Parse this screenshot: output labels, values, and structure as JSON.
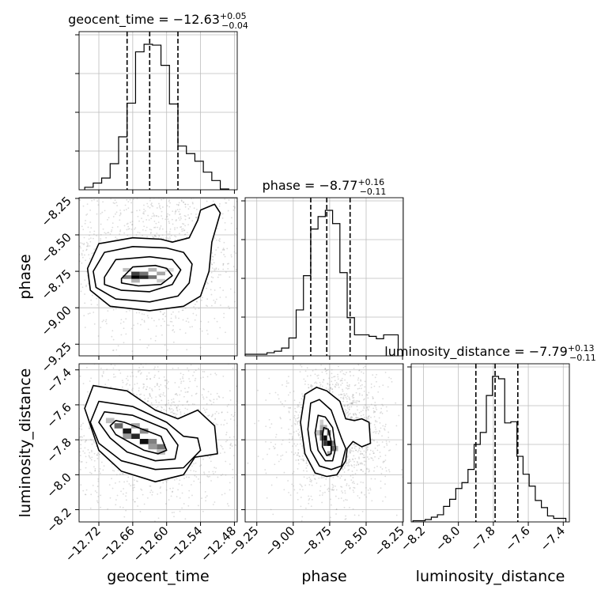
{
  "chart_data": {
    "type": "corner",
    "parameters": [
      "geocent_time",
      "phase",
      "luminosity_distance"
    ],
    "axis_labels": {
      "geocent_time": "geocent_time",
      "phase": "phase",
      "luminosity_distance": "luminosity_distance"
    },
    "ranges": {
      "geocent_time": [
        -12.755,
        -12.475
      ],
      "phase": [
        -9.33,
        -8.245
      ],
      "luminosity_distance": [
        -8.27,
        -7.365
      ]
    },
    "ticks": {
      "geocent_time": {
        "values": [
          -12.72,
          -12.66,
          -12.6,
          -12.54,
          -12.48
        ],
        "labels": [
          "−12.72",
          "−12.66",
          "−12.60",
          "−12.54",
          "−12.48"
        ]
      },
      "phase": {
        "values": [
          -9.25,
          -9.0,
          -8.75,
          -8.5,
          -8.25
        ],
        "labels": [
          "−9.25",
          "−9.00",
          "−8.75",
          "−8.50",
          "−8.25"
        ]
      },
      "luminosity_distance": {
        "values": [
          -8.2,
          -8.0,
          -7.8,
          -7.6,
          -7.4
        ],
        "labels": [
          "−8.2",
          "−8.0",
          "−7.8",
          "−7.6",
          "−7.4"
        ]
      }
    },
    "grid": true,
    "marginals": [
      {
        "parameter": "geocent_time",
        "title_main": "geocent_time = −12.63",
        "title_plus": "+0.05",
        "title_minus": "−0.04",
        "quantiles": [
          -12.67,
          -12.63,
          -12.58
        ],
        "bin_edges": [
          -12.745,
          -12.73,
          -12.715,
          -12.7,
          -12.685,
          -12.67,
          -12.655,
          -12.64,
          -12.625,
          -12.61,
          -12.595,
          -12.58,
          -12.565,
          -12.55,
          -12.535,
          -12.52,
          -12.505,
          -12.49
        ],
        "counts": [
          3,
          8,
          14,
          31,
          63,
          103,
          164,
          173,
          172,
          148,
          102,
          52,
          43,
          34,
          21,
          11,
          1
        ]
      },
      {
        "parameter": "phase",
        "title_main": "phase = −8.77",
        "title_plus": "+0.16",
        "title_minus": "−0.11",
        "quantiles": [
          -8.88,
          -8.77,
          -8.61
        ],
        "bin_edges": [
          -9.33,
          -9.28,
          -9.23,
          -9.18,
          -9.13,
          -9.08,
          -9.03,
          -8.98,
          -8.93,
          -8.88,
          -8.83,
          -8.78,
          -8.73,
          -8.68,
          -8.63,
          -8.58,
          -8.53,
          -8.48,
          -8.43,
          -8.38,
          -8.33,
          -8.28
        ],
        "counts": [
          2,
          2,
          2,
          4,
          6,
          10,
          23,
          59,
          103,
          163,
          179,
          187,
          170,
          107,
          49,
          27,
          27,
          25,
          22,
          27,
          27
        ]
      },
      {
        "parameter": "luminosity_distance",
        "title_main": "luminosity_distance = −7.79",
        "title_plus": "+0.13",
        "title_minus": "−0.11",
        "quantiles": [
          -7.9,
          -7.79,
          -7.66
        ],
        "bin_edges": [
          -8.26,
          -8.225,
          -8.19,
          -8.155,
          -8.12,
          -8.085,
          -8.05,
          -8.015,
          -7.98,
          -7.945,
          -7.91,
          -7.875,
          -7.84,
          -7.805,
          -7.77,
          -7.735,
          -7.7,
          -7.665,
          -7.63,
          -7.595,
          -7.56,
          -7.525,
          -7.49,
          -7.455,
          -7.42,
          -7.385
        ],
        "counts": [
          1,
          1,
          2,
          4,
          6,
          13,
          19,
          28,
          33,
          44,
          65,
          75,
          106,
          122,
          120,
          83,
          84,
          55,
          40,
          30,
          18,
          12,
          5,
          3,
          3
        ]
      }
    ],
    "joint": [
      {
        "x": "geocent_time",
        "y": "phase",
        "peak": [
          -12.65,
          -8.79
        ],
        "density_cells": [
          {
            "x": -12.655,
            "y": -8.79,
            "v": 1.0
          },
          {
            "x": -12.64,
            "y": -8.79,
            "v": 0.85
          },
          {
            "x": -12.655,
            "y": -8.765,
            "v": 0.75
          },
          {
            "x": -12.625,
            "y": -8.79,
            "v": 0.55
          },
          {
            "x": -12.67,
            "y": -8.79,
            "v": 0.5
          },
          {
            "x": -12.64,
            "y": -8.765,
            "v": 0.55
          },
          {
            "x": -12.61,
            "y": -8.765,
            "v": 0.35
          },
          {
            "x": -12.625,
            "y": -8.74,
            "v": 0.3
          },
          {
            "x": -12.67,
            "y": -8.74,
            "v": 0.25
          },
          {
            "x": -12.655,
            "y": -8.815,
            "v": 0.3
          },
          {
            "x": -12.61,
            "y": -8.815,
            "v": 0.2
          },
          {
            "x": -12.595,
            "y": -8.74,
            "v": 0.15
          }
        ],
        "contours": [
          [
            [
              -12.68,
              -8.8
            ],
            [
              -12.66,
              -8.72
            ],
            [
              -12.62,
              -8.71
            ],
            [
              -12.6,
              -8.73
            ],
            [
              -12.59,
              -8.78
            ],
            [
              -12.61,
              -8.84
            ],
            [
              -12.65,
              -8.85
            ],
            [
              -12.68,
              -8.83
            ]
          ],
          [
            [
              -12.71,
              -8.79
            ],
            [
              -12.69,
              -8.67
            ],
            [
              -12.63,
              -8.65
            ],
            [
              -12.59,
              -8.67
            ],
            [
              -12.575,
              -8.74
            ],
            [
              -12.59,
              -8.84
            ],
            [
              -12.63,
              -8.89
            ],
            [
              -12.68,
              -8.88
            ],
            [
              -12.71,
              -8.84
            ]
          ],
          [
            [
              -12.73,
              -8.75
            ],
            [
              -12.71,
              -8.62
            ],
            [
              -12.66,
              -8.58
            ],
            [
              -12.6,
              -8.59
            ],
            [
              -12.57,
              -8.62
            ],
            [
              -12.555,
              -8.7
            ],
            [
              -12.56,
              -8.83
            ],
            [
              -12.58,
              -8.92
            ],
            [
              -12.63,
              -8.96
            ],
            [
              -12.69,
              -8.94
            ],
            [
              -12.725,
              -8.86
            ]
          ],
          [
            [
              -12.74,
              -8.73
            ],
            [
              -12.72,
              -8.56
            ],
            [
              -12.66,
              -8.52
            ],
            [
              -12.61,
              -8.53
            ],
            [
              -12.59,
              -8.55
            ],
            [
              -12.56,
              -8.52
            ],
            [
              -12.545,
              -8.4
            ],
            [
              -12.54,
              -8.33
            ],
            [
              -12.515,
              -8.29
            ],
            [
              -12.505,
              -8.35
            ],
            [
              -12.52,
              -8.55
            ],
            [
              -12.525,
              -8.75
            ],
            [
              -12.54,
              -8.92
            ],
            [
              -12.57,
              -8.99
            ],
            [
              -12.63,
              -9.02
            ],
            [
              -12.7,
              -8.99
            ],
            [
              -12.735,
              -8.88
            ]
          ]
        ]
      },
      {
        "x": "geocent_time",
        "y": "luminosity_distance",
        "peak": [
          -12.65,
          -7.78
        ],
        "density_cells": [
          {
            "x": -12.67,
            "y": -7.75,
            "v": 0.9
          },
          {
            "x": -12.655,
            "y": -7.78,
            "v": 0.85
          },
          {
            "x": -12.64,
            "y": -7.81,
            "v": 0.95
          },
          {
            "x": -12.685,
            "y": -7.72,
            "v": 0.6
          },
          {
            "x": -12.625,
            "y": -7.81,
            "v": 0.5
          },
          {
            "x": -12.61,
            "y": -7.84,
            "v": 0.55
          },
          {
            "x": -12.64,
            "y": -7.75,
            "v": 0.45
          },
          {
            "x": -12.655,
            "y": -7.72,
            "v": 0.35
          },
          {
            "x": -12.625,
            "y": -7.84,
            "v": 0.4
          },
          {
            "x": -12.7,
            "y": -7.69,
            "v": 0.25
          },
          {
            "x": -12.67,
            "y": -7.78,
            "v": 0.4
          },
          {
            "x": -12.61,
            "y": -7.87,
            "v": 0.25
          }
        ],
        "contours": [
          [
            [
              -12.69,
              -7.69
            ],
            [
              -12.675,
              -7.7
            ],
            [
              -12.61,
              -7.78
            ],
            [
              -12.6,
              -7.86
            ],
            [
              -12.615,
              -7.88
            ],
            [
              -12.64,
              -7.86
            ],
            [
              -12.69,
              -7.77
            ],
            [
              -12.7,
              -7.72
            ]
          ],
          [
            [
              -12.71,
              -7.64
            ],
            [
              -12.66,
              -7.66
            ],
            [
              -12.6,
              -7.74
            ],
            [
              -12.58,
              -7.83
            ],
            [
              -12.585,
              -7.91
            ],
            [
              -12.62,
              -7.92
            ],
            [
              -12.67,
              -7.87
            ],
            [
              -12.7,
              -7.79
            ],
            [
              -12.72,
              -7.7
            ]
          ],
          [
            [
              -12.72,
              -7.58
            ],
            [
              -12.66,
              -7.61
            ],
            [
              -12.6,
              -7.7
            ],
            [
              -12.57,
              -7.78
            ],
            [
              -12.545,
              -7.79
            ],
            [
              -12.54,
              -7.86
            ],
            [
              -12.57,
              -7.96
            ],
            [
              -12.62,
              -7.97
            ],
            [
              -12.68,
              -7.92
            ],
            [
              -12.72,
              -7.82
            ],
            [
              -12.735,
              -7.7
            ]
          ],
          [
            [
              -12.73,
              -7.49
            ],
            [
              -12.67,
              -7.52
            ],
            [
              -12.62,
              -7.63
            ],
            [
              -12.58,
              -7.68
            ],
            [
              -12.545,
              -7.63
            ],
            [
              -12.515,
              -7.72
            ],
            [
              -12.51,
              -7.88
            ],
            [
              -12.55,
              -7.9
            ],
            [
              -12.57,
              -8.0
            ],
            [
              -12.62,
              -8.04
            ],
            [
              -12.68,
              -7.98
            ],
            [
              -12.72,
              -7.86
            ],
            [
              -12.745,
              -7.62
            ]
          ]
        ]
      },
      {
        "x": "phase",
        "y": "luminosity_distance",
        "peak": [
          -8.77,
          -7.81
        ],
        "density_cells": [
          {
            "x": -8.78,
            "y": -7.79,
            "v": 0.95
          },
          {
            "x": -8.755,
            "y": -7.82,
            "v": 1.0
          },
          {
            "x": -8.805,
            "y": -7.76,
            "v": 0.7
          },
          {
            "x": -8.73,
            "y": -7.85,
            "v": 0.65
          },
          {
            "x": -8.78,
            "y": -7.82,
            "v": 0.8
          },
          {
            "x": -8.755,
            "y": -7.76,
            "v": 0.6
          },
          {
            "x": -8.805,
            "y": -7.79,
            "v": 0.55
          },
          {
            "x": -8.73,
            "y": -7.82,
            "v": 0.5
          },
          {
            "x": -8.805,
            "y": -7.73,
            "v": 0.35
          },
          {
            "x": -8.78,
            "y": -7.73,
            "v": 0.3
          },
          {
            "x": -8.705,
            "y": -7.85,
            "v": 0.3
          },
          {
            "x": -8.755,
            "y": -7.88,
            "v": 0.35
          },
          {
            "x": -8.83,
            "y": -7.76,
            "v": 0.25
          },
          {
            "x": -8.805,
            "y": -7.7,
            "v": 0.2
          }
        ],
        "contours": [
          [
            [
              -8.8,
              -7.78
            ],
            [
              -8.79,
              -7.73
            ],
            [
              -8.76,
              -7.74
            ],
            [
              -8.74,
              -7.81
            ],
            [
              -8.74,
              -7.88
            ],
            [
              -8.77,
              -7.89
            ],
            [
              -8.8,
              -7.84
            ]
          ],
          [
            [
              -8.85,
              -7.76
            ],
            [
              -8.83,
              -7.66
            ],
            [
              -8.78,
              -7.67
            ],
            [
              -8.73,
              -7.73
            ],
            [
              -8.71,
              -7.85
            ],
            [
              -8.73,
              -7.92
            ],
            [
              -8.78,
              -7.92
            ],
            [
              -8.83,
              -7.86
            ]
          ],
          [
            [
              -8.9,
              -7.74
            ],
            [
              -8.88,
              -7.59
            ],
            [
              -8.82,
              -7.57
            ],
            [
              -8.74,
              -7.63
            ],
            [
              -8.67,
              -7.79
            ],
            [
              -8.64,
              -7.85
            ],
            [
              -8.67,
              -7.95
            ],
            [
              -8.74,
              -7.97
            ],
            [
              -8.82,
              -7.95
            ],
            [
              -8.88,
              -7.86
            ]
          ],
          [
            [
              -8.95,
              -7.7
            ],
            [
              -8.92,
              -7.54
            ],
            [
              -8.84,
              -7.5
            ],
            [
              -8.77,
              -7.52
            ],
            [
              -8.68,
              -7.58
            ],
            [
              -8.64,
              -7.68
            ],
            [
              -8.58,
              -7.69
            ],
            [
              -8.53,
              -7.68
            ],
            [
              -8.48,
              -7.7
            ],
            [
              -8.47,
              -7.82
            ],
            [
              -8.53,
              -7.84
            ],
            [
              -8.59,
              -7.81
            ],
            [
              -8.63,
              -7.85
            ],
            [
              -8.64,
              -7.92
            ],
            [
              -8.7,
              -8.0
            ],
            [
              -8.77,
              -8.01
            ],
            [
              -8.85,
              -7.99
            ],
            [
              -8.92,
              -7.88
            ]
          ]
        ]
      }
    ]
  }
}
